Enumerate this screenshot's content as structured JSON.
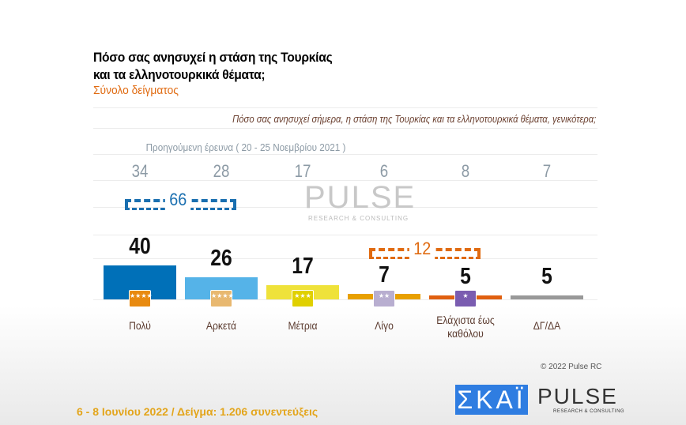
{
  "title_line1": "Πόσο σας ανησυχεί η στάση της Τουρκίας",
  "title_line2": "και τα ελληνοτουρκικά θέματα;",
  "subtitle": "Σύνολο δείγματος",
  "question": "Πόσο σας ανησυχεί σήμερα, η στάση της Τουρκίας και τα ελληνοτουρκικά θέματα, γενικότερα;",
  "previous_label": "Προηγούμενη έρευνα  ( 20 - 25 Νοεμβρίου  2021 )",
  "watermark": "PULSE",
  "watermark_sub": "RESEARCH & CONSULTING",
  "copyright": "© 2022 Pulse RC",
  "footer": "6 - 8  Ιουνίου  2022  /  Δείγμα:  1.206 συνεντεύξεις",
  "logos": {
    "skai": "ΣΚΑΪ",
    "pulse": "PULSE",
    "pulse_sub": "RESEARCH & CONSULTING"
  },
  "chart_data": {
    "type": "bar",
    "title": "Πόσο σας ανησυχεί η στάση της Τουρκίας και τα ελληνοτουρκικά θέματα;",
    "categories": [
      "Πολύ",
      "Αρκετά",
      "Μέτρια",
      "Λίγο",
      "Ελάχιστα έως καθόλου",
      "ΔΓ/ΔΑ"
    ],
    "series": [
      {
        "name": "6 - 8 Ιουνίου 2022",
        "values": [
          40,
          26,
          17,
          7,
          5,
          5
        ],
        "labels": [
          "40",
          "26",
          "17",
          "7",
          "5",
          "5"
        ]
      },
      {
        "name": "Προηγούμενη έρευνα (20 - 25 Νοεμβρίου 2021)",
        "values": [
          34,
          28,
          17,
          6,
          8,
          7
        ],
        "labels": [
          "34",
          "28",
          "17",
          "6",
          "8",
          "7"
        ]
      }
    ],
    "colors": [
      "#0070b8",
      "#55b3e8",
      "#efe23a",
      "#e8a000",
      "#e06010",
      "#999999"
    ],
    "badge_colors": [
      "#e88a10",
      "#e8b870",
      "#e0d000",
      "#b8aed0",
      "#7a5cb0"
    ],
    "badge_stars": [
      "★★★★",
      "★★★★",
      "★★★",
      "★★",
      "★",
      ""
    ],
    "groups": [
      {
        "label": "66",
        "color": "#1a6fb0",
        "span": [
          0,
          1
        ]
      },
      {
        "label": "12",
        "color": "#e06a10",
        "span": [
          3,
          4
        ]
      }
    ],
    "ylim": [
      0,
      45
    ]
  }
}
